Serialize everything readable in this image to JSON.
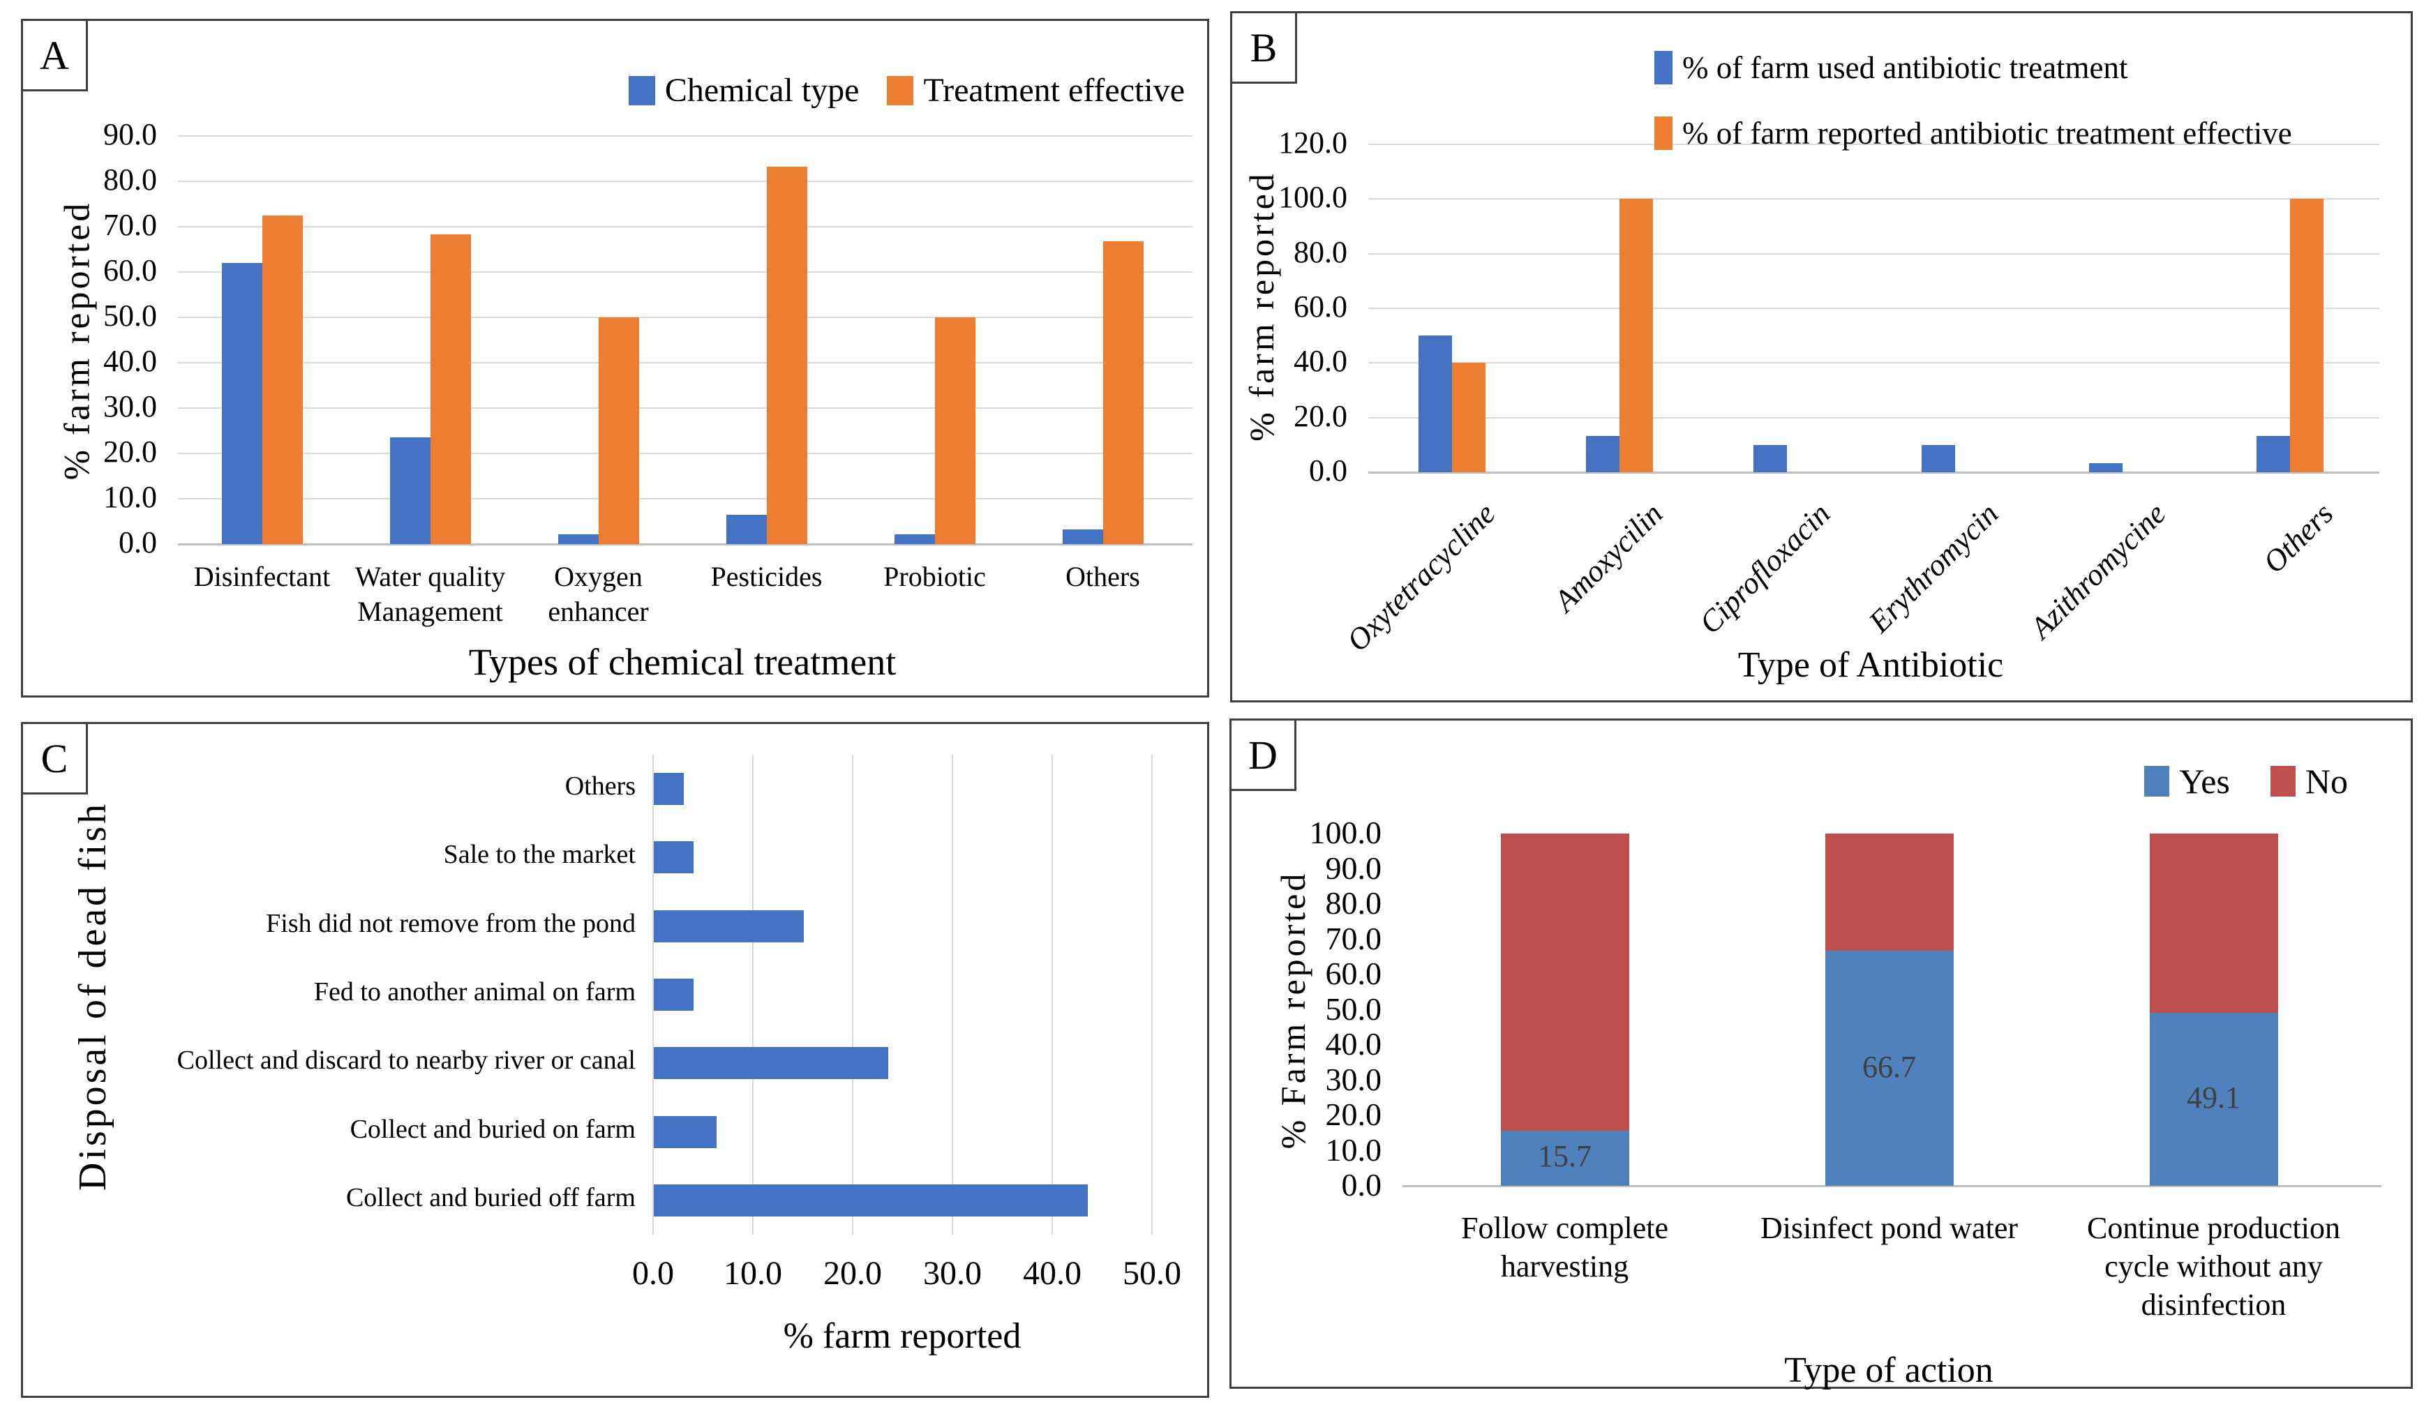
{
  "colors": {
    "blue": "#4472C4",
    "orange": "#ED7D31",
    "blue_d": "#4F81BD",
    "red": "#C0504D",
    "grid": "#D9D9D9",
    "axis": "#BFBFBF",
    "value_label_text": "#404040"
  },
  "panels": {
    "A": {
      "label": "A"
    },
    "B": {
      "label": "B"
    },
    "C": {
      "label": "C"
    },
    "D": {
      "label": "D"
    }
  },
  "chart_data": [
    {
      "panel": "A",
      "type": "bar",
      "categories": [
        "Disinfectant",
        "Water quality\nManagement",
        "Oxygen\nenhancer",
        "Pesticides",
        "Probiotic",
        "Others"
      ],
      "series": [
        {
          "name": "Chemical type",
          "color": "blue",
          "values": [
            62.0,
            23.5,
            2.2,
            6.5,
            2.2,
            3.2
          ]
        },
        {
          "name": "Treatment effective",
          "color": "orange",
          "values": [
            72.5,
            68.3,
            50.0,
            83.3,
            50.0,
            66.7
          ]
        }
      ],
      "ylabel": "% farm reported",
      "xlabel": "Types of chemical treatment",
      "ylim": [
        0,
        90
      ],
      "ytick_step": 10,
      "grid": true,
      "legend_position": "top-right"
    },
    {
      "panel": "B",
      "type": "bar",
      "categories": [
        "Oxytetracycline",
        "Amoxycilin",
        "Ciprofloxacin",
        "Erythromycin",
        "Azithromycine",
        "Others"
      ],
      "series": [
        {
          "name": "% of farm used antibiotic treatment",
          "color": "blue",
          "values": [
            50.0,
            13.3,
            10.0,
            10.0,
            3.3,
            13.3
          ]
        },
        {
          "name": "% of farm reported antibiotic treatment effective",
          "color": "orange",
          "values": [
            40.0,
            100.0,
            0.0,
            0.0,
            0.0,
            100.0
          ]
        }
      ],
      "ylabel": "% farm reported",
      "xlabel": "Type of Antibiotic",
      "ylim": [
        0,
        120
      ],
      "ytick_step": 20,
      "grid": true,
      "legend_position": "top-right-stacked"
    },
    {
      "panel": "C",
      "type": "hbar",
      "categories": [
        "Others",
        "Sale to the market",
        "Fish did not remove from the pond",
        "Fed to another animal on farm",
        "Collect and discard to nearby river or canal",
        "Collect and buried on farm",
        "Collect and buried off farm"
      ],
      "series": [
        {
          "name": "% farm reported",
          "color": "blue",
          "values": [
            3.0,
            4.0,
            15.0,
            4.0,
            23.5,
            6.3,
            43.5
          ]
        }
      ],
      "ylabel": "Disposal of dead fish",
      "xlabel": "%  farm reported",
      "xlim": [
        0,
        50
      ],
      "xtick_step": 10,
      "grid": true,
      "legend_position": "none"
    },
    {
      "panel": "D",
      "type": "stacked-bar",
      "categories": [
        "Follow complete\nharvesting",
        "Disinfect pond water",
        "Continue production\ncycle without any\ndisinfection"
      ],
      "series": [
        {
          "name": "Yes",
          "color": "blue_d",
          "values": [
            15.7,
            66.7,
            49.1
          ]
        },
        {
          "name": "No",
          "color": "red",
          "values": [
            84.3,
            33.3,
            50.9
          ]
        }
      ],
      "value_labels": [
        "15.7",
        "66.7",
        "49.1"
      ],
      "ylabel": "% Farm reported",
      "xlabel": "Type of action",
      "ylim": [
        0,
        100
      ],
      "ytick_step": 10,
      "grid": false,
      "legend_position": "top-right"
    }
  ]
}
